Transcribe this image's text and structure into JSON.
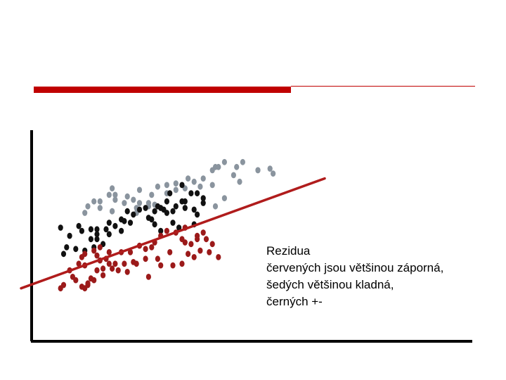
{
  "colors": {
    "accent": "#c00000",
    "red_points": "#9b1a1a",
    "gray_points": "#8a949e",
    "black_points": "#111111",
    "regression_line": "#b01c1c",
    "axes": "#000000"
  },
  "caption": {
    "line1": "Rezidua",
    "line2": "červených jsou většinou záporná,",
    "line3": "šedých většinou kladná,",
    "line4": "černých +-"
  },
  "chart_data": {
    "type": "scatter",
    "title": "",
    "xlabel": "",
    "ylabel": "",
    "grid": false,
    "legend": "none",
    "regression_line": {
      "x": [
        0,
        100
      ],
      "y": [
        10,
        77
      ]
    },
    "series": [
      {
        "color": "#8a949e",
        "points": [
          [
            63,
            73
          ],
          [
            64,
            84
          ],
          [
            65,
            84
          ],
          [
            71,
            84
          ],
          [
            70,
            79
          ],
          [
            67,
            87
          ],
          [
            72,
            75
          ],
          [
            78,
            82
          ],
          [
            83,
            80
          ],
          [
            82,
            83
          ],
          [
            78,
            82
          ],
          [
            73,
            87
          ],
          [
            63,
            82
          ],
          [
            60,
            77
          ],
          [
            57,
            75
          ],
          [
            54,
            71
          ],
          [
            51,
            70
          ],
          [
            48,
            73
          ],
          [
            48,
            68
          ],
          [
            43,
            67
          ],
          [
            42,
            60
          ],
          [
            44,
            61
          ],
          [
            39,
            62
          ],
          [
            37,
            64
          ],
          [
            34,
            62
          ],
          [
            29,
            67
          ],
          [
            30,
            71
          ],
          [
            31,
            67
          ],
          [
            35,
            66
          ],
          [
            39,
            70
          ],
          [
            45,
            72
          ],
          [
            51,
            74
          ],
          [
            55,
            77
          ],
          [
            59,
            72
          ],
          [
            24,
            63
          ],
          [
            22,
            60
          ],
          [
            21,
            56
          ],
          [
            26,
            59
          ],
          [
            30,
            57
          ],
          [
            30,
            57
          ],
          [
            38,
            59
          ],
          [
            42,
            62
          ],
          [
            38,
            56
          ],
          [
            26,
            63
          ],
          [
            31,
            64
          ],
          [
            64,
            60
          ],
          [
            67,
            65
          ]
        ]
      },
      {
        "color": "#111111",
        "points": [
          [
            14,
            31
          ],
          [
            15,
            35
          ],
          [
            16,
            42
          ],
          [
            13,
            47
          ],
          [
            20,
            45
          ],
          [
            19,
            48
          ],
          [
            23,
            46
          ],
          [
            25,
            43
          ],
          [
            25,
            46
          ],
          [
            31,
            48
          ],
          [
            29,
            50
          ],
          [
            28,
            46
          ],
          [
            34,
            51
          ],
          [
            35,
            57
          ],
          [
            37,
            55
          ],
          [
            39,
            58
          ],
          [
            41,
            59
          ],
          [
            43,
            52
          ],
          [
            48,
            56
          ],
          [
            50,
            57
          ],
          [
            51,
            60
          ],
          [
            53,
            63
          ],
          [
            56,
            68
          ],
          [
            57,
            58
          ],
          [
            60,
            62
          ],
          [
            60,
            65
          ],
          [
            54,
            63
          ],
          [
            49,
            68
          ],
          [
            53,
            73
          ],
          [
            58,
            68
          ],
          [
            33,
            45
          ],
          [
            29,
            43
          ],
          [
            25,
            40
          ],
          [
            23,
            40
          ],
          [
            24,
            35
          ],
          [
            21,
            33
          ],
          [
            27,
            37
          ],
          [
            18,
            34
          ],
          [
            46,
            45
          ],
          [
            50,
            50
          ],
          [
            52,
            47
          ],
          [
            57,
            49
          ],
          [
            44,
            49
          ],
          [
            36,
            50
          ],
          [
            33,
            52
          ],
          [
            42,
            53
          ],
          [
            48,
            63
          ],
          [
            46,
            59
          ],
          [
            54,
            59
          ],
          [
            58,
            55
          ],
          [
            44,
            57
          ],
          [
            45,
            60
          ],
          [
            47,
            58
          ]
        ]
      },
      {
        "color": "#9b1a1a",
        "points": [
          [
            13,
            10
          ],
          [
            14,
            12
          ],
          [
            16,
            21
          ],
          [
            17,
            17
          ],
          [
            18,
            15
          ],
          [
            20,
            11
          ],
          [
            21,
            10
          ],
          [
            22,
            12
          ],
          [
            23,
            16
          ],
          [
            24,
            15
          ],
          [
            25,
            21
          ],
          [
            27,
            18
          ],
          [
            27,
            22
          ],
          [
            29,
            25
          ],
          [
            28,
            28
          ],
          [
            26,
            27
          ],
          [
            24,
            33
          ],
          [
            21,
            31
          ],
          [
            20,
            29
          ],
          [
            19,
            25
          ],
          [
            21,
            24
          ],
          [
            25,
            30
          ],
          [
            26,
            35
          ],
          [
            29,
            32
          ],
          [
            33,
            32
          ],
          [
            36,
            32
          ],
          [
            39,
            36
          ],
          [
            41,
            34
          ],
          [
            43,
            35
          ],
          [
            44,
            38
          ],
          [
            46,
            42
          ],
          [
            48,
            45
          ],
          [
            51,
            44
          ],
          [
            53,
            40
          ],
          [
            54,
            38
          ],
          [
            56,
            37
          ],
          [
            58,
            42
          ],
          [
            59,
            33
          ],
          [
            57,
            29
          ],
          [
            53,
            25
          ],
          [
            50,
            24
          ],
          [
            49,
            32
          ],
          [
            45,
            28
          ],
          [
            41,
            28
          ],
          [
            38,
            25
          ],
          [
            34,
            25
          ],
          [
            32,
            21
          ],
          [
            31,
            25
          ],
          [
            35,
            20
          ],
          [
            37,
            26
          ],
          [
            42,
            17
          ],
          [
            46,
            24
          ],
          [
            55,
            31
          ],
          [
            58,
            40
          ],
          [
            60,
            44
          ],
          [
            61,
            40
          ],
          [
            62,
            32
          ],
          [
            63,
            37
          ],
          [
            65,
            29
          ],
          [
            54,
            47
          ],
          [
            22,
            13
          ],
          [
            30,
            22
          ]
        ]
      }
    ]
  }
}
